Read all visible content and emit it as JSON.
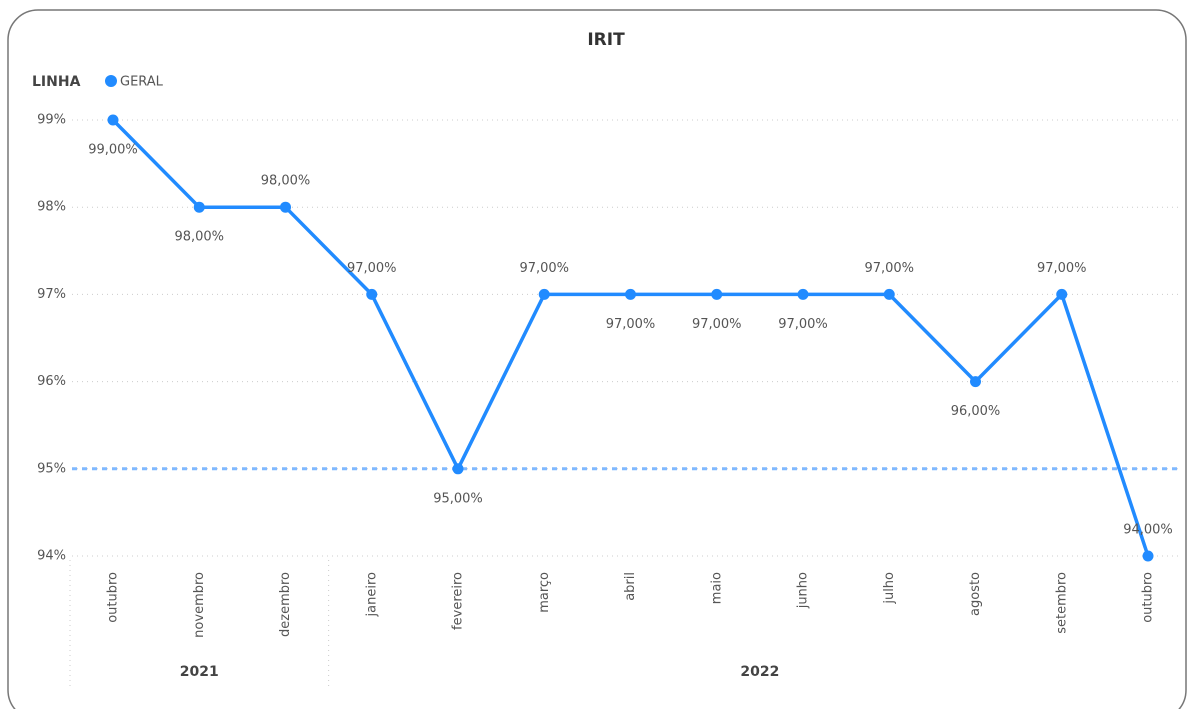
{
  "chart_data": {
    "type": "line",
    "title": "IRIT",
    "legend_title": "LINHA",
    "categories": [
      "outubro",
      "novembro",
      "dezembro",
      "janeiro",
      "fevereiro",
      "março",
      "abril",
      "maio",
      "junho",
      "julho",
      "agosto",
      "setembro",
      "outubro"
    ],
    "groups": [
      {
        "label": "2021",
        "span": 3
      },
      {
        "label": "2022",
        "span": 10
      }
    ],
    "series": [
      {
        "name": "GERAL",
        "color": "#218bff",
        "values": [
          99,
          98,
          98,
          97,
          95,
          97,
          97,
          97,
          97,
          97,
          96,
          97,
          94
        ],
        "value_labels": [
          "99,00%",
          "98,00%",
          "98,00%",
          "97,00%",
          "95,00%",
          "97,00%",
          "97,00%",
          "97,00%",
          "97,00%",
          "97,00%",
          "96,00%",
          "97,00%",
          "94,00%"
        ]
      }
    ],
    "reference_line": 95,
    "ylim": [
      94,
      99
    ],
    "yticks": [
      {
        "value": 94,
        "label": "94%"
      },
      {
        "value": 95,
        "label": "95%"
      },
      {
        "value": 96,
        "label": "96%"
      },
      {
        "value": 97,
        "label": "97%"
      },
      {
        "value": 98,
        "label": "98%"
      },
      {
        "value": 99,
        "label": "99%"
      }
    ],
    "grid": true
  }
}
